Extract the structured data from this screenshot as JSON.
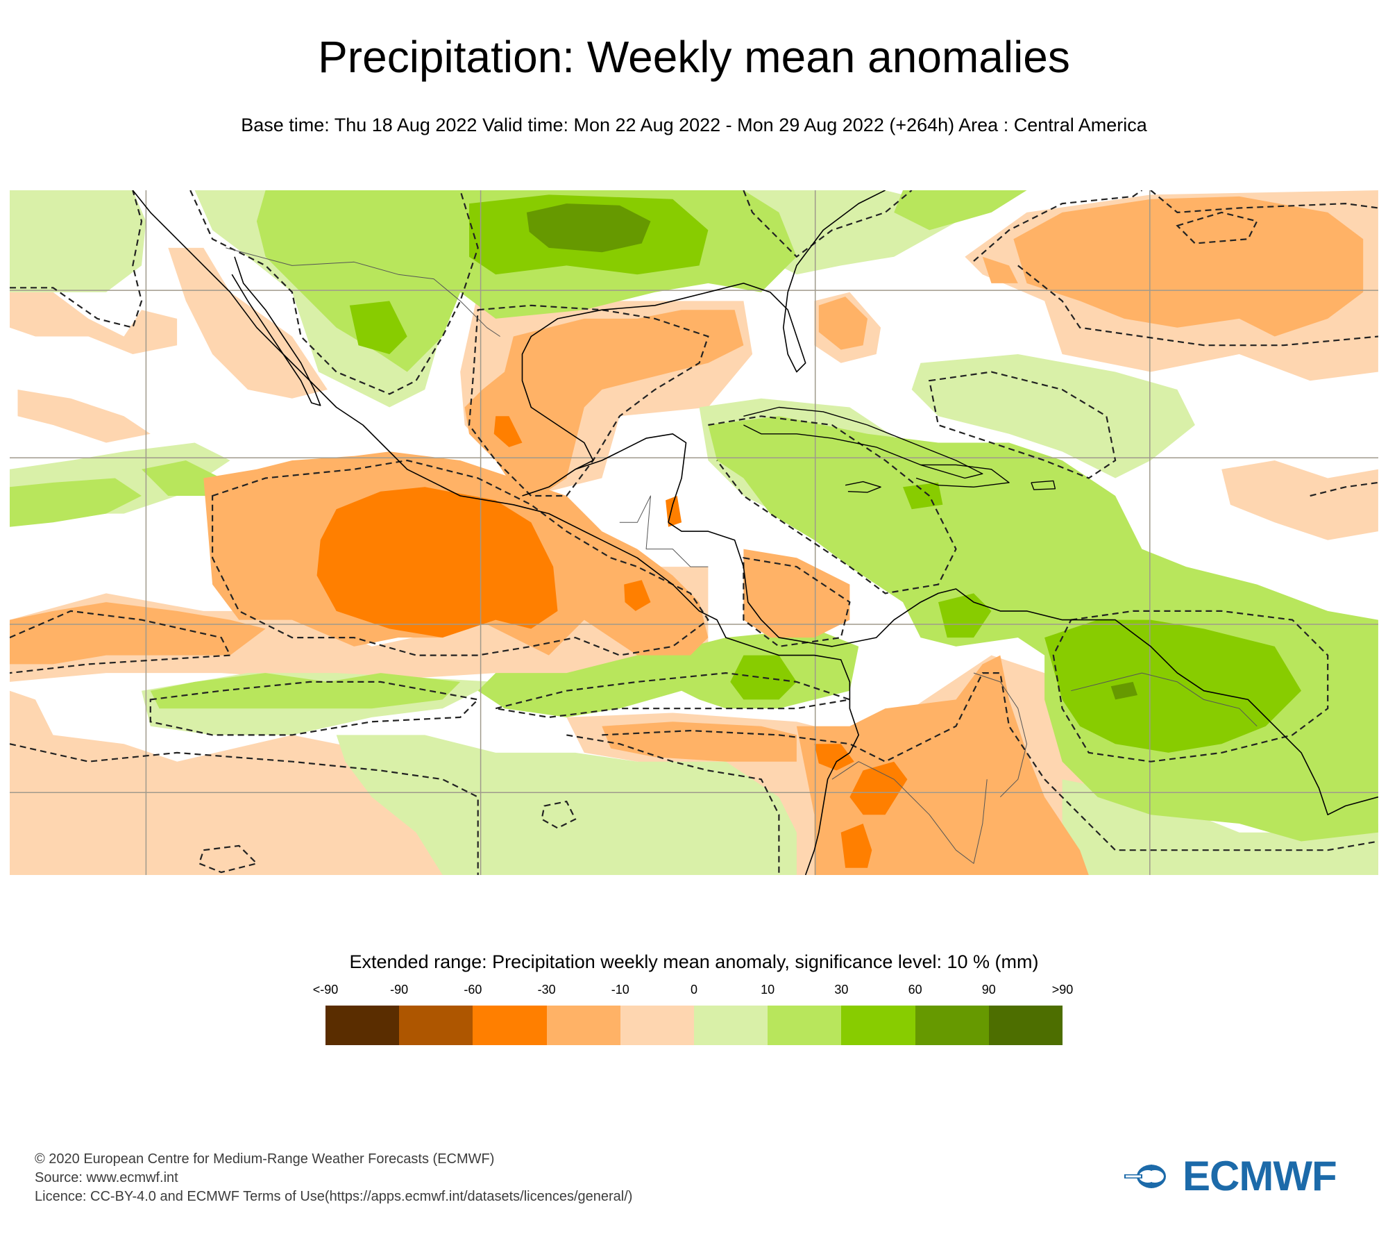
{
  "header": {
    "title": "Precipitation: Weekly mean anomalies",
    "subtitle": "Base time: Thu 18 Aug 2022 Valid time: Mon 22 Aug 2022 - Mon 29 Aug 2022 (+264h) Area : Central America"
  },
  "map": {
    "area": "Central America",
    "field": "Precipitation weekly mean anomaly",
    "significance_contour": "dashed line = significance level 10 %",
    "base_time": "Thu 18 Aug 2022",
    "valid_start": "Mon 22 Aug 2022",
    "valid_end": "Mon 29 Aug 2022",
    "lead_time": "+264h",
    "colors": {
      "gridline": "#a09a8c",
      "coastline": "#000000",
      "border": "#555555",
      "significance": "#222222"
    }
  },
  "legend": {
    "title": "Extended range: Precipitation weekly mean anomaly, significance level: 10 % (mm)",
    "labels": [
      "<-90",
      "-90",
      "-60",
      "-30",
      "-10",
      "0",
      "10",
      "30",
      "60",
      "90",
      ">90"
    ],
    "classes": [
      {
        "range": "< -90",
        "color": "#5a2d00"
      },
      {
        "range": "-90 to -60",
        "color": "#ae5600"
      },
      {
        "range": "-60 to -30",
        "color": "#ff7f00"
      },
      {
        "range": "-30 to -10",
        "color": "#ffb266"
      },
      {
        "range": "-10 to 0",
        "color": "#fed6b0"
      },
      {
        "range": "0 to 10",
        "color": "#d9f0a8"
      },
      {
        "range": "10 to 30",
        "color": "#b8e65c"
      },
      {
        "range": "30 to 60",
        "color": "#88cc00"
      },
      {
        "range": "60 to 90",
        "color": "#669900"
      },
      {
        "range": "> 90",
        "color": "#4d6e00"
      }
    ]
  },
  "footer": {
    "copyright": "© 2020 European Centre for Medium-Range Weather Forecasts (ECMWF)",
    "source": "Source: www.ecmwf.int",
    "licence": "Licence: CC-BY-4.0 and ECMWF Terms of Use(https://apps.ecmwf.int/datasets/licences/general/)"
  },
  "logo": {
    "text": "ECMWF",
    "color": "#1c6aa9"
  }
}
